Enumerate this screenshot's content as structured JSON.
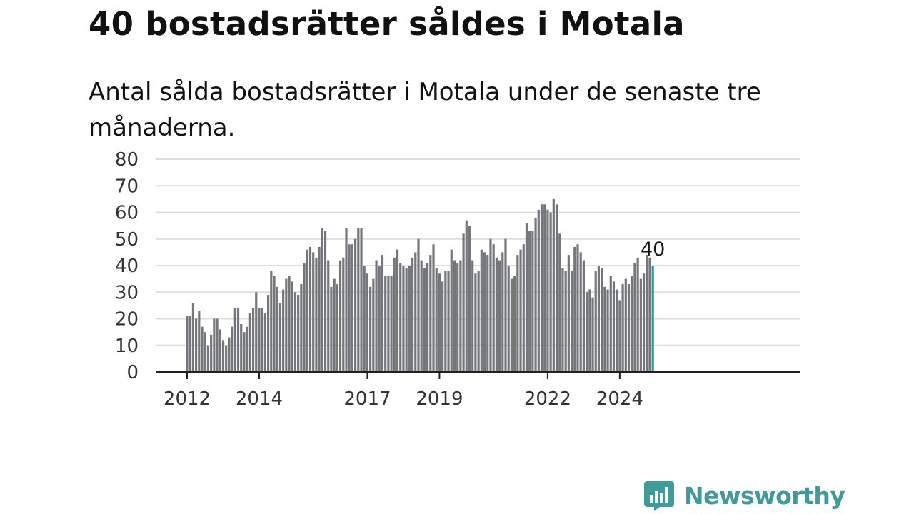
{
  "title": "40 bostadsrätter såldes i Motala",
  "subtitle": "Antal sålda bostadsrätter i Motala under de senaste tre månaderna.",
  "brand": {
    "name": "Newsworthy",
    "icon": "newsworthy-chat-bars-icon",
    "color": "#3f9a99"
  },
  "colors": {
    "bar": "#75757c",
    "highlight": "#1c9c98",
    "grid": "#dddddd",
    "axis": "#222222"
  },
  "chart_data": {
    "type": "bar",
    "title": "40 bostadsrätter såldes i Motala",
    "subtitle": "Antal sålda bostadsrätter i Motala under de senaste tre månaderna.",
    "xlabel": "",
    "ylabel": "",
    "ylim": [
      0,
      80
    ],
    "yticks": [
      0,
      10,
      20,
      30,
      40,
      50,
      60,
      70,
      80
    ],
    "grid": true,
    "legend": "none",
    "x_start": "2012-01",
    "x_step": "month",
    "xtick_labels": [
      {
        "label": "2012",
        "index": 0
      },
      {
        "label": "2014",
        "index": 24
      },
      {
        "label": "2017",
        "index": 60
      },
      {
        "label": "2019",
        "index": 84
      },
      {
        "label": "2022",
        "index": 120
      },
      {
        "label": "2024",
        "index": 144
      }
    ],
    "values": [
      21,
      21,
      26,
      20,
      23,
      17,
      15,
      10,
      14,
      20,
      20,
      16,
      12,
      10,
      13,
      17,
      24,
      24,
      18,
      15,
      17,
      22,
      24,
      30,
      24,
      24,
      22,
      29,
      38,
      36,
      32,
      26,
      31,
      35,
      36,
      34,
      30,
      29,
      33,
      41,
      46,
      47,
      45,
      43,
      47,
      54,
      53,
      42,
      32,
      35,
      33,
      42,
      43,
      54,
      48,
      48,
      50,
      54,
      54,
      40,
      37,
      32,
      35,
      42,
      40,
      44,
      36,
      36,
      36,
      43,
      46,
      41,
      40,
      39,
      40,
      43,
      45,
      50,
      42,
      39,
      41,
      44,
      48,
      39,
      37,
      34,
      38,
      38,
      46,
      42,
      41,
      42,
      52,
      57,
      55,
      42,
      37,
      38,
      46,
      45,
      44,
      50,
      48,
      43,
      42,
      45,
      50,
      40,
      35,
      36,
      44,
      46,
      48,
      56,
      53,
      53,
      58,
      61,
      63,
      63,
      61,
      60,
      65,
      63,
      52,
      39,
      38,
      44,
      38,
      47,
      48,
      45,
      42,
      30,
      31,
      28,
      38,
      40,
      39,
      32,
      31,
      36,
      34,
      31,
      27,
      33,
      35,
      33,
      36,
      41,
      43,
      35,
      37,
      44,
      43,
      40
    ],
    "highlight_last": true,
    "last_value_label": "40"
  }
}
